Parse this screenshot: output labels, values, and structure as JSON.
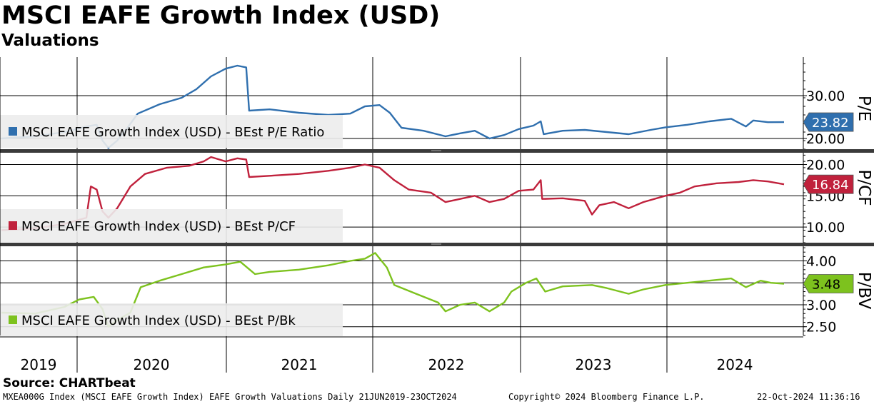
{
  "title": "MSCI EAFE Growth Index (USD)",
  "subtitle": "Valuations",
  "source": "Source: CHARTbeat",
  "footer": {
    "left": "MXEA000G Index (MSCI EAFE Growth Index) EAFE Growth Valuations  Daily 21JUN2019-23OCT2024",
    "center": "Copyright© 2024 Bloomberg Finance L.P.",
    "right": "22-Oct-2024 11:36:16"
  },
  "chart_data": [
    {
      "type": "line",
      "x_labels": [
        "2019",
        "2020",
        "2021",
        "2022",
        "2023",
        "2024"
      ],
      "panels": [
        {
          "id": "pe",
          "axis_label": "P/E",
          "ylim": [
            17.5,
            39
          ],
          "ticks": [
            20,
            30
          ],
          "tick_labels": [
            "20.00",
            "30.00"
          ],
          "color": "#2f6fae",
          "series": {
            "name": "MSCI EAFE Growth Index (USD) - BEst P/E Ratio",
            "last_value": "23.82",
            "points": [
              [
                2019.47,
                20.0
              ],
              [
                2019.7,
                20.5
              ],
              [
                2019.9,
                21.5
              ],
              [
                2020.05,
                22.8
              ],
              [
                2020.12,
                23.2
              ],
              [
                2020.16,
                19.5
              ],
              [
                2020.2,
                17.8
              ],
              [
                2020.26,
                19.5
              ],
              [
                2020.33,
                22.5
              ],
              [
                2020.4,
                25.8
              ],
              [
                2020.55,
                28.0
              ],
              [
                2020.7,
                29.5
              ],
              [
                2020.8,
                31.5
              ],
              [
                2020.9,
                34.5
              ],
              [
                2021.0,
                36.3
              ],
              [
                2021.08,
                37.0
              ],
              [
                2021.14,
                36.6
              ],
              [
                2021.16,
                26.5
              ],
              [
                2021.3,
                26.8
              ],
              [
                2021.5,
                26.0
              ],
              [
                2021.7,
                25.5
              ],
              [
                2021.85,
                25.8
              ],
              [
                2021.95,
                27.5
              ],
              [
                2022.05,
                27.8
              ],
              [
                2022.12,
                26.0
              ],
              [
                2022.2,
                22.5
              ],
              [
                2022.35,
                21.8
              ],
              [
                2022.5,
                20.5
              ],
              [
                2022.6,
                21.2
              ],
              [
                2022.7,
                21.8
              ],
              [
                2022.8,
                20.0
              ],
              [
                2022.9,
                20.8
              ],
              [
                2023.0,
                22.2
              ],
              [
                2023.1,
                23.0
              ],
              [
                2023.15,
                24.0
              ],
              [
                2023.17,
                21.0
              ],
              [
                2023.3,
                21.8
              ],
              [
                2023.45,
                22.0
              ],
              [
                2023.6,
                21.5
              ],
              [
                2023.75,
                21.0
              ],
              [
                2023.9,
                22.0
              ],
              [
                2024.0,
                22.6
              ],
              [
                2024.15,
                23.2
              ],
              [
                2024.3,
                24.0
              ],
              [
                2024.45,
                24.6
              ],
              [
                2024.55,
                22.8
              ],
              [
                2024.6,
                24.2
              ],
              [
                2024.7,
                23.8
              ],
              [
                2024.81,
                23.82
              ]
            ]
          }
        },
        {
          "id": "pcf",
          "axis_label": "P/CF",
          "ylim": [
            7.5,
            22
          ],
          "ticks": [
            10,
            15,
            20
          ],
          "tick_labels": [
            "10.00",
            "15.00",
            "20.00"
          ],
          "color": "#c0213c",
          "series": {
            "name": "MSCI EAFE Growth Index (USD) - BEst P/CF",
            "last_value": "16.84",
            "points": [
              [
                2019.47,
                9.5
              ],
              [
                2019.7,
                9.8
              ],
              [
                2019.9,
                10.5
              ],
              [
                2020.05,
                11.5
              ],
              [
                2020.08,
                16.5
              ],
              [
                2020.12,
                16.0
              ],
              [
                2020.16,
                12.5
              ],
              [
                2020.2,
                11.5
              ],
              [
                2020.26,
                13.0
              ],
              [
                2020.35,
                16.5
              ],
              [
                2020.45,
                18.5
              ],
              [
                2020.6,
                19.5
              ],
              [
                2020.75,
                19.8
              ],
              [
                2020.85,
                20.5
              ],
              [
                2020.9,
                21.2
              ],
              [
                2021.0,
                20.5
              ],
              [
                2021.08,
                21.0
              ],
              [
                2021.14,
                20.8
              ],
              [
                2021.16,
                18.0
              ],
              [
                2021.3,
                18.2
              ],
              [
                2021.5,
                18.5
              ],
              [
                2021.7,
                19.0
              ],
              [
                2021.85,
                19.5
              ],
              [
                2021.95,
                20.0
              ],
              [
                2022.05,
                19.5
              ],
              [
                2022.15,
                17.5
              ],
              [
                2022.25,
                16.0
              ],
              [
                2022.4,
                15.5
              ],
              [
                2022.5,
                14.0
              ],
              [
                2022.6,
                14.5
              ],
              [
                2022.7,
                15.0
              ],
              [
                2022.8,
                14.0
              ],
              [
                2022.9,
                14.5
              ],
              [
                2023.0,
                15.8
              ],
              [
                2023.1,
                16.0
              ],
              [
                2023.15,
                17.5
              ],
              [
                2023.16,
                14.5
              ],
              [
                2023.3,
                14.6
              ],
              [
                2023.45,
                14.2
              ],
              [
                2023.5,
                12.0
              ],
              [
                2023.55,
                13.5
              ],
              [
                2023.65,
                14.0
              ],
              [
                2023.75,
                13.0
              ],
              [
                2023.85,
                14.0
              ],
              [
                2024.0,
                15.0
              ],
              [
                2024.1,
                15.5
              ],
              [
                2024.2,
                16.5
              ],
              [
                2024.35,
                17.0
              ],
              [
                2024.5,
                17.2
              ],
              [
                2024.6,
                17.5
              ],
              [
                2024.7,
                17.3
              ],
              [
                2024.81,
                16.84
              ]
            ]
          }
        },
        {
          "id": "pb",
          "axis_label": "P/BV",
          "ylim": [
            2.3,
            4.35
          ],
          "ticks": [
            2.5,
            3.0,
            3.5,
            4.0
          ],
          "tick_labels": [
            "2.50",
            "3.00",
            "3.50",
            "4.00"
          ],
          "color": "#7dc21e",
          "series": {
            "name": "MSCI EAFE Growth Index (USD) - BEst P/Bk",
            "last_value": "3.48",
            "points": [
              [
                2019.47,
                2.82
              ],
              [
                2019.7,
                2.8
              ],
              [
                2019.9,
                2.95
              ],
              [
                2020.0,
                3.12
              ],
              [
                2020.1,
                3.18
              ],
              [
                2020.16,
                2.9
              ],
              [
                2020.2,
                2.5
              ],
              [
                2020.26,
                2.65
              ],
              [
                2020.35,
                2.82
              ],
              [
                2020.42,
                3.4
              ],
              [
                2020.55,
                3.55
              ],
              [
                2020.7,
                3.7
              ],
              [
                2020.85,
                3.85
              ],
              [
                2021.0,
                3.92
              ],
              [
                2021.1,
                3.98
              ],
              [
                2021.2,
                3.7
              ],
              [
                2021.3,
                3.75
              ],
              [
                2021.5,
                3.8
              ],
              [
                2021.7,
                3.9
              ],
              [
                2021.85,
                4.0
              ],
              [
                2021.95,
                4.05
              ],
              [
                2022.02,
                4.18
              ],
              [
                2022.1,
                3.85
              ],
              [
                2022.15,
                3.45
              ],
              [
                2022.3,
                3.25
              ],
              [
                2022.45,
                3.05
              ],
              [
                2022.5,
                2.85
              ],
              [
                2022.6,
                3.0
              ],
              [
                2022.7,
                3.05
              ],
              [
                2022.8,
                2.85
              ],
              [
                2022.9,
                3.05
              ],
              [
                2022.95,
                3.3
              ],
              [
                2023.05,
                3.5
              ],
              [
                2023.12,
                3.6
              ],
              [
                2023.18,
                3.3
              ],
              [
                2023.3,
                3.42
              ],
              [
                2023.5,
                3.45
              ],
              [
                2023.6,
                3.38
              ],
              [
                2023.75,
                3.25
              ],
              [
                2023.85,
                3.35
              ],
              [
                2024.0,
                3.45
              ],
              [
                2024.15,
                3.5
              ],
              [
                2024.3,
                3.55
              ],
              [
                2024.45,
                3.6
              ],
              [
                2024.55,
                3.4
              ],
              [
                2024.65,
                3.55
              ],
              [
                2024.72,
                3.5
              ],
              [
                2024.81,
                3.48
              ]
            ]
          }
        }
      ]
    }
  ]
}
